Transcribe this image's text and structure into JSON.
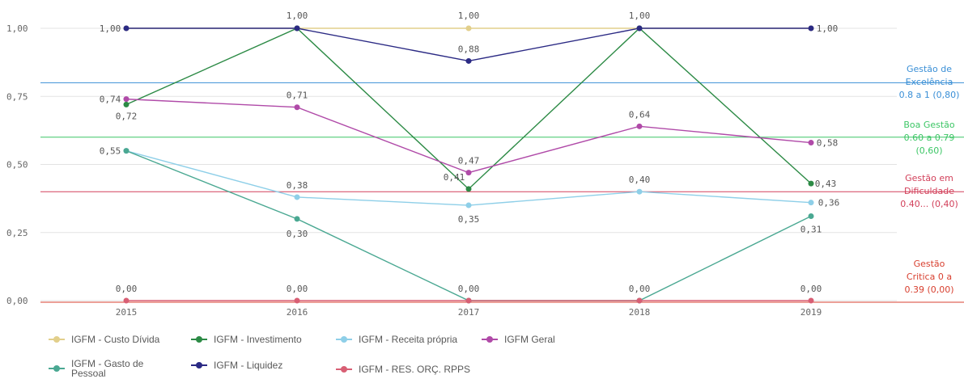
{
  "chart_data": {
    "type": "line",
    "categories": [
      "2015",
      "2016",
      "2017",
      "2018",
      "2019"
    ],
    "ylim": [
      0,
      1
    ],
    "y_ticks": [
      "0,00",
      "0,25",
      "0,50",
      "0,75",
      "1,00"
    ],
    "series": [
      {
        "name": "IGFM - Custo Dívida",
        "color": "#e2cf8b",
        "values": [
          1.0,
          1.0,
          1.0,
          1.0,
          1.0
        ],
        "labels": [
          "",
          "1,00",
          "1,00",
          "1,00",
          ""
        ]
      },
      {
        "name": "IGFM - Investimento",
        "color": "#2c8a45",
        "values": [
          0.72,
          1.0,
          0.41,
          1.0,
          0.43
        ],
        "labels": [
          "0,72",
          "",
          "0,41",
          "",
          "0,43"
        ]
      },
      {
        "name": "IGFM - Receita própria",
        "color": "#8ecfe8",
        "values": [
          0.55,
          0.38,
          0.35,
          0.4,
          0.36
        ],
        "labels": [
          "",
          "0,38",
          "0,35",
          "0,40",
          "0,36"
        ]
      },
      {
        "name": "IGFM Geral",
        "color": "#b04aa8",
        "values": [
          0.74,
          0.71,
          0.47,
          0.64,
          0.58
        ],
        "labels": [
          "0,74",
          "0,71",
          "0,47",
          "0,64",
          "0,58"
        ]
      },
      {
        "name": "IGFM - Gasto de Pessoal",
        "color": "#4aa892",
        "values": [
          0.55,
          0.3,
          0.0,
          0.0,
          0.31
        ],
        "labels": [
          "0,55",
          "0,30",
          "",
          "",
          "0,31"
        ]
      },
      {
        "name": "IGFM - Liquidez",
        "color": "#2b2a84",
        "values": [
          1.0,
          1.0,
          0.88,
          1.0,
          1.0
        ],
        "labels": [
          "1,00",
          "",
          "0,88",
          "",
          "1,00"
        ]
      },
      {
        "name": "IGFM - RES. ORÇ. RPPS",
        "color": "#d85f74",
        "values": [
          0.0,
          0.0,
          0.0,
          0.0,
          0.0
        ],
        "labels": [
          "0,00",
          "0,00",
          "0,00",
          "0,00",
          "0,00"
        ]
      }
    ],
    "reference_lines": [
      {
        "value": 0.8,
        "color": "#3a8fd6",
        "label_lines": [
          "Gestão de",
          "Excelência",
          "0.8 a 1 (0,80)"
        ]
      },
      {
        "value": 0.6,
        "color": "#3cc665",
        "label_lines": [
          "Boa Gestão",
          "0.60 a 0.79",
          "(0,60)"
        ]
      },
      {
        "value": 0.4,
        "color": "#d2405a",
        "label_lines": [
          "Gestão em",
          "Dificuldade",
          "0.40... (0,40)"
        ]
      },
      {
        "value": 0.0,
        "color": "#d84030",
        "label_lines": [
          "Gestão",
          "Critica 0 a",
          "0.39 (0,00)"
        ]
      }
    ],
    "grid": true,
    "legend_position": "bottom"
  },
  "legend": {
    "items": [
      {
        "label": "IGFM - Custo Dívida",
        "color": "#e2cf8b"
      },
      {
        "label": "IGFM - Investimento",
        "color": "#2c8a45"
      },
      {
        "label": "IGFM - Receita própria",
        "color": "#8ecfe8"
      },
      {
        "label": "IGFM Geral",
        "color": "#b04aa8"
      },
      {
        "label": "IGFM - Gasto de Pessoal",
        "color": "#4aa892"
      },
      {
        "label": "IGFM - Liquidez",
        "color": "#2b2a84"
      },
      {
        "label": "IGFM - RES. ORÇ. RPPS",
        "color": "#d85f74"
      }
    ]
  }
}
